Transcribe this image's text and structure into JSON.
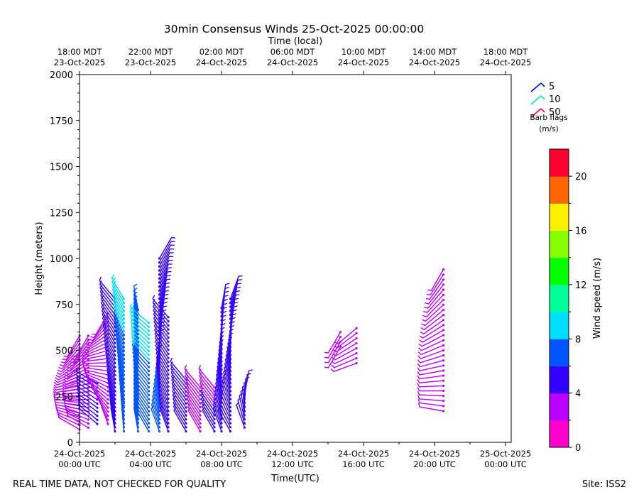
{
  "chart_data": {
    "type": "wind-barb",
    "title": "30min Consensus Winds 25-Oct-2025 00:00:00",
    "top_axis_label": "Time (local)",
    "xlabel": "Time(UTC)",
    "ylabel": "Height (meters)",
    "x_hours_range": [
      0,
      24.5
    ],
    "ylim": [
      0,
      2000
    ],
    "yticks": [
      "0",
      "250",
      "500",
      "750",
      "1000",
      "1250",
      "1500",
      "1750",
      "2000"
    ],
    "ytick_values": [
      0,
      250,
      500,
      750,
      1000,
      1250,
      1500,
      1750,
      2000
    ],
    "xticks_utc": [
      {
        "h": 0,
        "l1": "24-Oct-2025",
        "l2": "00:00 UTC"
      },
      {
        "h": 4,
        "l1": "24-Oct-2025",
        "l2": "04:00 UTC"
      },
      {
        "h": 8,
        "l1": "24-Oct-2025",
        "l2": "08:00 UTC"
      },
      {
        "h": 12,
        "l1": "24-Oct-2025",
        "l2": "12:00 UTC"
      },
      {
        "h": 16,
        "l1": "24-Oct-2025",
        "l2": "16:00 UTC"
      },
      {
        "h": 20,
        "l1": "24-Oct-2025",
        "l2": "20:00 UTC"
      },
      {
        "h": 24,
        "l1": "25-Oct-2025",
        "l2": "00:00 UTC"
      }
    ],
    "xticks_local": [
      {
        "h": 0,
        "l1": "18:00 MDT",
        "l2": "23-Oct-2025"
      },
      {
        "h": 4,
        "l1": "22:00 MDT",
        "l2": "23-Oct-2025"
      },
      {
        "h": 8,
        "l1": "02:00 MDT",
        "l2": "24-Oct-2025"
      },
      {
        "h": 12,
        "l1": "06:00 MDT",
        "l2": "24-Oct-2025"
      },
      {
        "h": 16,
        "l1": "10:00 MDT",
        "l2": "24-Oct-2025"
      },
      {
        "h": 20,
        "l1": "14:00 MDT",
        "l2": "24-Oct-2025"
      },
      {
        "h": 24,
        "l1": "18:00 MDT",
        "l2": "24-Oct-2025"
      }
    ],
    "barb_legend": {
      "items": [
        {
          "label": "5",
          "color": "#0000cc"
        },
        {
          "label": "10",
          "color": "#00ee99"
        },
        {
          "label": "50",
          "color": "#ee0033"
        }
      ],
      "title1": "Barb flags",
      "title2": "(m/s)"
    },
    "colorbar": {
      "label": "Wind speed (m/s)",
      "range": [
        0,
        22
      ],
      "ticks": [
        "0",
        "4",
        "8",
        "12",
        "16",
        "20"
      ],
      "tick_values": [
        0,
        4,
        8,
        12,
        16,
        20
      ],
      "colors": [
        "#ff00cc",
        "#bb00ff",
        "#3300ff",
        "#0055ff",
        "#00ddff",
        "#00ff99",
        "#00ff00",
        "#88ff00",
        "#ffee00",
        "#ff6600",
        "#ff0033"
      ]
    },
    "series": [
      {
        "name": "00:00",
        "t": 0.0,
        "h0": 70,
        "h1": 580,
        "dh": 22,
        "s0": 3.5,
        "s1": 3.5,
        "d0": 300,
        "d1": 210
      },
      {
        "name": "00:30",
        "t": 0.5,
        "h0": 80,
        "h1": 580,
        "dh": 22,
        "s0": 3.5,
        "s1": 3.5,
        "d0": 300,
        "d1": 210
      },
      {
        "name": "01:00",
        "t": 1.0,
        "h0": 100,
        "h1": 320,
        "dh": 22,
        "s0": 4.5,
        "s1": 4.5,
        "d0": 310,
        "d1": 300
      },
      {
        "name": "01:30",
        "t": 1.6,
        "h0": 100,
        "h1": 700,
        "dh": 22,
        "s0": 3.5,
        "s1": 3.5,
        "d0": 340,
        "d1": 210
      },
      {
        "name": "02:00",
        "t": 2.0,
        "h0": 60,
        "h1": 780,
        "dh": 22,
        "s0": 5.0,
        "s1": 5.5,
        "d0": 350,
        "d1": 320
      },
      {
        "name": "02:30",
        "t": 2.5,
        "h0": 60,
        "h1": 780,
        "dh": 22,
        "s0": 6.5,
        "s1": 8.5,
        "d0": 355,
        "d1": 330
      },
      {
        "name": "03:00",
        "t": 3.3,
        "h0": 60,
        "h1": 720,
        "dh": 22,
        "s0": 6.5,
        "s1": 6.5,
        "d0": 350,
        "d1": 350
      },
      {
        "name": "03:30",
        "t": 3.9,
        "h0": 60,
        "h1": 650,
        "dh": 22,
        "s0": 7.0,
        "s1": 8.5,
        "d0": 330,
        "d1": 310
      },
      {
        "name": "04:00",
        "t": 4.5,
        "h0": 60,
        "h1": 1000,
        "dh": 22,
        "s0": 6.5,
        "s1": 4.5,
        "d0": 340,
        "d1": 30
      },
      {
        "name": "04:30",
        "t": 5.0,
        "h0": 60,
        "h1": 680,
        "dh": 22,
        "s0": 5.5,
        "s1": 4.5,
        "d0": 340,
        "d1": 320
      },
      {
        "name": "05:00",
        "t": 6.0,
        "h0": 60,
        "h1": 340,
        "dh": 22,
        "s0": 5.0,
        "s1": 5.0,
        "d0": 330,
        "d1": 320
      },
      {
        "name": "05:30",
        "t": 6.8,
        "h0": 60,
        "h1": 300,
        "dh": 22,
        "s0": 3.5,
        "s1": 3.5,
        "d0": 330,
        "d1": 320
      },
      {
        "name": "06:00",
        "t": 7.6,
        "h0": 60,
        "h1": 300,
        "dh": 22,
        "s0": 4.5,
        "s1": 3.5,
        "d0": 330,
        "d1": 320
      },
      {
        "name": "06:30",
        "t": 8.0,
        "h0": 60,
        "h1": 730,
        "dh": 22,
        "s0": 5.0,
        "s1": 5.0,
        "d0": 340,
        "d1": 10
      },
      {
        "name": "07:00",
        "t": 8.5,
        "h0": 60,
        "h1": 780,
        "dh": 22,
        "s0": 5.0,
        "s1": 5.0,
        "d0": 330,
        "d1": 20
      },
      {
        "name": "07:30",
        "t": 9.3,
        "h0": 80,
        "h1": 260,
        "dh": 22,
        "s0": 4.5,
        "s1": 4.5,
        "d0": 340,
        "d1": 10
      },
      {
        "name": "15:00",
        "t": 14.7,
        "h0": 520,
        "h1": 600,
        "dh": 30,
        "s0": 3.5,
        "s1": 3.5,
        "d0": 210,
        "d1": 210
      },
      {
        "name": "16:00",
        "t": 15.6,
        "h0": 430,
        "h1": 620,
        "dh": 28,
        "s0": 3.5,
        "s1": 3.5,
        "d0": 250,
        "d1": 230
      },
      {
        "name": "20:30",
        "t": 20.5,
        "h0": 170,
        "h1": 940,
        "dh": 28,
        "s0": 3.5,
        "s1": 3.5,
        "d0": 280,
        "d1": 210
      }
    ]
  },
  "footer": {
    "left": "REAL TIME DATA, NOT CHECKED FOR QUALITY",
    "right": "Site: ISS2"
  }
}
